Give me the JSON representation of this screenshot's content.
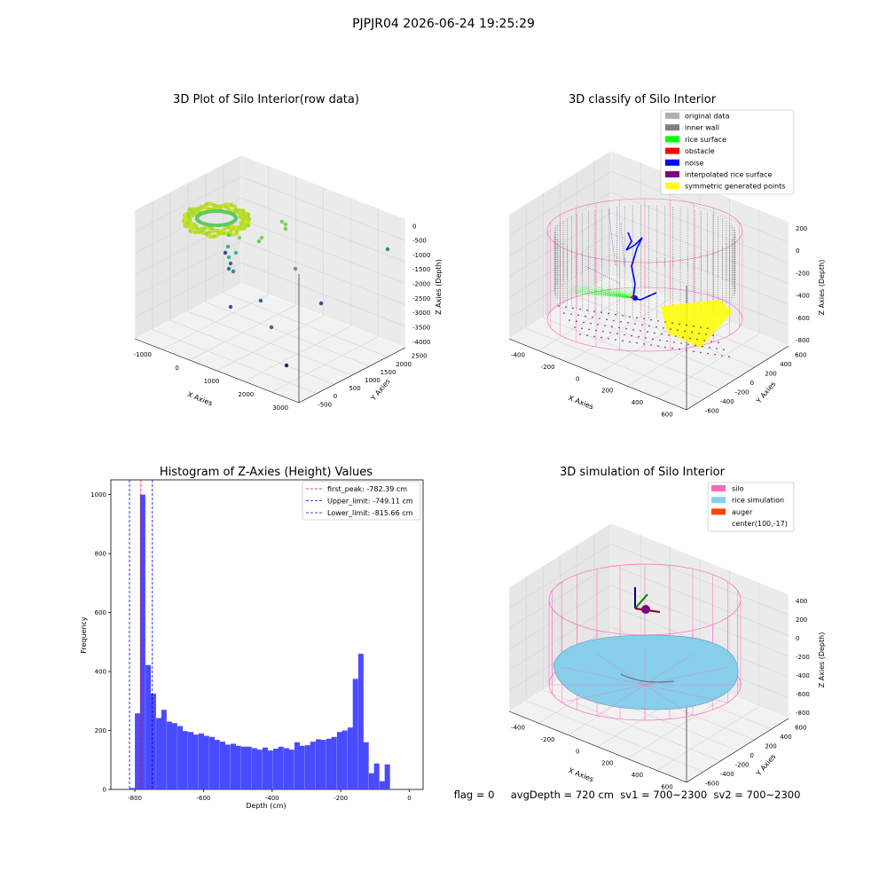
{
  "figure": {
    "suptitle": "PJPJR04 2026-06-24 19:25:29",
    "status_line": "flag = 0     avgDepth = 720 cm  sv1 = 700~2300  sv2 = 700~2300"
  },
  "colors": {
    "bar": "#4040ff",
    "peak_line": "#ff0000",
    "limit_line": "#0000cc",
    "silo": "#ff69b4",
    "rice_sim": "#87ceeb",
    "auger": "#ff4500",
    "original": "#b0b0b0",
    "inner_wall": "#808080",
    "rice_surface": "#00ff00",
    "obstacle": "#ff0000",
    "noise": "#0000ff",
    "interpolated": "#800080",
    "symmetric": "#ffff00"
  },
  "panels": {
    "raw": {
      "title": "3D Plot of Silo Interior(row data)",
      "xlabel": "X Axies",
      "ylabel": "Y Axies",
      "zlabel": "Z Axies (Depth)",
      "xticks": [
        "-1000",
        "0",
        "1000",
        "2000",
        "3000"
      ],
      "yticks": [
        "-500",
        "0",
        "500",
        "1000",
        "1500",
        "2000",
        "2500"
      ],
      "zticks": [
        "0",
        "-500",
        "-1000",
        "-1500",
        "-2000",
        "-2500",
        "-3000",
        "-3500",
        "-4000"
      ]
    },
    "classify": {
      "title": "3D classify of Silo Interior",
      "xlabel": "X Axies",
      "ylabel": "Y Axies",
      "zlabel": "Z Axies (Depth)",
      "xticks": [
        "-400",
        "-200",
        "0",
        "200",
        "400",
        "600"
      ],
      "yticks": [
        "-600",
        "-400",
        "-200",
        "0",
        "200",
        "400",
        "600"
      ],
      "zticks": [
        "200",
        "0",
        "-200",
        "-400",
        "-600",
        "-800"
      ],
      "legend": [
        {
          "label": "original data",
          "color": "#b0b0b0"
        },
        {
          "label": "inner wall",
          "color": "#808080"
        },
        {
          "label": "rice surface",
          "color": "#00ff00"
        },
        {
          "label": "obstacle",
          "color": "#ff0000"
        },
        {
          "label": "noise",
          "color": "#0000ff"
        },
        {
          "label": "interpolated rice surface",
          "color": "#800080"
        },
        {
          "label": "symmetric generated points",
          "color": "#ffff00"
        }
      ]
    },
    "simulation": {
      "title": "3D simulation of Silo Interior",
      "xlabel": "X Axies",
      "ylabel": "Y Axies",
      "zlabel": "Z Axies (Depth)",
      "xticks": [
        "-400",
        "-200",
        "0",
        "200",
        "400",
        "600"
      ],
      "yticks": [
        "-600",
        "-400",
        "-200",
        "0",
        "200",
        "400",
        "600"
      ],
      "zticks": [
        "400",
        "200",
        "0",
        "-200",
        "-400",
        "-600",
        "-800"
      ],
      "legend": [
        {
          "label": "silo",
          "color": "#ff69b4"
        },
        {
          "label": "rice simulation",
          "color": "#87ceeb"
        },
        {
          "label": "auger",
          "color": "#ff4500"
        },
        {
          "label": "center(100,-17)",
          "color": ""
        }
      ]
    }
  },
  "chart_data": {
    "type": "bar",
    "title": "Histogram of Z-Axies (Height) Values",
    "xlabel": "Depth (cm)",
    "ylabel": "Frequency",
    "xlim": [
      -870,
      40
    ],
    "ylim": [
      0,
      1050
    ],
    "xticks": [
      -800,
      -600,
      -400,
      -200,
      0
    ],
    "yticks": [
      0,
      200,
      400,
      600,
      800,
      1000
    ],
    "bin_width": 15.5,
    "bins_start": [
      -816,
      -800,
      -785,
      -769,
      -754,
      -738,
      -723,
      -707,
      -692,
      -676,
      -661,
      -645,
      -630,
      -614,
      -599,
      -583,
      -568,
      -552,
      -537,
      -521,
      -506,
      -490,
      -475,
      -459,
      -444,
      -428,
      -413,
      -397,
      -382,
      -366,
      -351,
      -335,
      -320,
      -304,
      -289,
      -273,
      -258,
      -242,
      -227,
      -211,
      -196,
      -180,
      -165,
      -149,
      -134,
      -118,
      -103,
      -87,
      -72,
      -56,
      -41,
      -25,
      -10
    ],
    "values": [
      5,
      258,
      1000,
      422,
      325,
      242,
      270,
      230,
      225,
      215,
      198,
      195,
      186,
      190,
      182,
      178,
      168,
      162,
      152,
      155,
      148,
      145,
      145,
      140,
      135,
      142,
      132,
      138,
      145,
      140,
      135,
      160,
      148,
      150,
      162,
      170,
      168,
      172,
      178,
      195,
      200,
      210,
      375,
      460,
      160,
      55,
      88,
      28,
      85,
      0,
      0,
      0,
      0
    ],
    "lines": [
      {
        "name": "first_peak: -782.39 cm",
        "x": -782.39,
        "color": "#ff0000"
      },
      {
        "name": "Upper_limit: -749.11 cm",
        "x": -749.11,
        "color": "#0000cc"
      },
      {
        "name": "Lower_limit: -815.66 cm",
        "x": -815.66,
        "color": "#0000cc"
      }
    ],
    "legend_position": "top-right"
  }
}
